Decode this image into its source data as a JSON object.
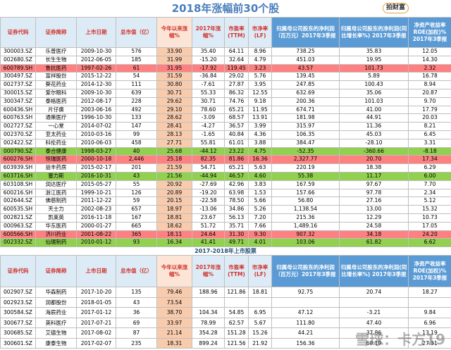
{
  "header": {
    "title": "2018年涨幅前30个股",
    "logo": "拍财富"
  },
  "columns": [
    "证券代码",
    "证券简称",
    "上市日期",
    "总市值（亿）",
    "今年以来涨幅%",
    "2017年涨幅%",
    "市盈率(TTM)",
    "市净率(LF)",
    "归属母公司股东的净利润（百万元）2017年3季报",
    "归属母公司股东的净利润(同比增长率%) 2017年3季报",
    "净资产收益率ROE(加权)% 2017年3季报"
  ],
  "rows": [
    {
      "cells": [
        "300003.SZ",
        "乐普医疗",
        "2009-10-30",
        "576",
        "33.90",
        "35.40",
        "64.11",
        "8.96",
        "738.25",
        "35.83",
        "12.05"
      ]
    },
    {
      "cells": [
        "002680.SZ",
        "长生生物",
        "2012-06-05",
        "185",
        "31.99",
        "-15.20",
        "32.64",
        "4.79",
        "451.03",
        "19.95",
        "14.30"
      ]
    },
    {
      "cells": [
        "600789.SH",
        "鲁抗医药",
        "1997-02-26",
        "61",
        "31.95",
        "-17.92",
        "119.45",
        "3.23",
        "43.57",
        "101.73",
        "2.32"
      ],
      "color": "#ff8080"
    },
    {
      "cells": [
        "300497.SZ",
        "富祥股份",
        "2015-12-22",
        "54",
        "31.59",
        "-36.84",
        "29.02",
        "5.76",
        "139.45",
        "5.89",
        "16.78"
      ]
    },
    {
      "cells": [
        "002737.SZ",
        "葵花药业",
        "2014-12-30",
        "111",
        "30.80",
        "-7.61",
        "27.87",
        "3.95",
        "247.85",
        "100.43",
        "8.94"
      ]
    },
    {
      "cells": [
        "300015.SZ",
        "爱尔眼科",
        "2009-10-30",
        "639",
        "30.71",
        "55.33",
        "86.32",
        "12.55",
        "632.69",
        "35.06",
        "20.87"
      ]
    },
    {
      "cells": [
        "300347.SZ",
        "泰格医药",
        "2012-08-17",
        "228",
        "29.62",
        "30.71",
        "74.76",
        "9.18",
        "200.36",
        "101.03",
        "9.70"
      ]
    },
    {
      "cells": [
        "600436.SH",
        "片仔癀",
        "2003-06-16",
        "492",
        "29.10",
        "78.60",
        "65.21",
        "11.95",
        "674.71",
        "41.00",
        "17.79"
      ]
    },
    {
      "cells": [
        "600763.SH",
        "通策医疗",
        "1996-10-30",
        "133",
        "28.62",
        "-3.09",
        "68.57",
        "13.91",
        "181.98",
        "44.91",
        "20.03"
      ]
    },
    {
      "cells": [
        "002727.SZ",
        "一心堂",
        "2014-07-02",
        "147",
        "28.41",
        "-4.27",
        "36.57",
        "3.99",
        "315.97",
        "11.36",
        "8.21"
      ]
    },
    {
      "cells": [
        "002370.SZ",
        "亚太药业",
        "2010-03-16",
        "99",
        "28.13",
        "-1.65",
        "40.84",
        "4.36",
        "106.35",
        "45.03",
        "6.45"
      ]
    },
    {
      "cells": [
        "002422.SZ",
        "科伦药业",
        "2010-06-03",
        "458",
        "27.71",
        "55.81",
        "61.01",
        "3.88",
        "384.47",
        "-28.10",
        "3.31"
      ]
    },
    {
      "cells": [
        "000790.SZ",
        "泰合健康",
        "1998-03-27",
        "40",
        "25.68",
        "-44.12",
        "23.22",
        "4.75",
        "-52.35",
        "-360.66",
        "-8.18"
      ],
      "color": "#92d050"
    },
    {
      "cells": [
        "600276.SH",
        "恒瑞医药",
        "2000-10-18",
        "2,446",
        "25.18",
        "82.35",
        "81.86",
        "16.36",
        "2,327.77",
        "20.70",
        "17.34"
      ],
      "color": "#ff8080"
    },
    {
      "cells": [
        "603939.SH",
        "益丰药房",
        "2015-02-17",
        "201",
        "21.59",
        "54.71",
        "65.21",
        "5.63",
        "220.19",
        "18.38",
        "6.29"
      ]
    },
    {
      "cells": [
        "603716.SH",
        "塞力斯",
        "2016-10-31",
        "43",
        "21.56",
        "-44.94",
        "46.57",
        "4.60",
        "55.38",
        "11.17",
        "6.00"
      ],
      "color": "#92d050"
    },
    {
      "cells": [
        "603108.SH",
        "润达医疗",
        "2015-05-27",
        "55",
        "20.92",
        "-27.69",
        "42.96",
        "3.83",
        "167.59",
        "97.67",
        "7.70"
      ]
    },
    {
      "cells": [
        "600216.SH",
        "浙江医药",
        "1999-10-21",
        "126",
        "20.89",
        "-19.20",
        "63.98",
        "1.53",
        "157.66",
        "97.78",
        "2.34"
      ]
    },
    {
      "cells": [
        "002644.SZ",
        "佛慈制药",
        "2011-12-22",
        "59",
        "20.15",
        "-22.58",
        "78.50",
        "5.66",
        "56.80",
        "27.16",
        "5.12"
      ]
    },
    {
      "cells": [
        "600535.SH",
        "天士力",
        "2002-08-23",
        "657",
        "18.97",
        "-13.06",
        "34.86",
        "5.26",
        "1,138.54",
        "13.00",
        "15.32"
      ]
    },
    {
      "cells": [
        "002821.SZ",
        "凯莱英",
        "2016-11-18",
        "167",
        "18.81",
        "23.67",
        "56.13",
        "7.20",
        "215.36",
        "12.29",
        "10.73"
      ]
    },
    {
      "cells": [
        "000963.SZ",
        "华东医药",
        "2000-01-27",
        "665",
        "18.62",
        "51.72",
        "35.71",
        "7.66",
        "1,489.16",
        "24.58",
        "17.05"
      ]
    },
    {
      "cells": [
        "600566.SH",
        "济川药业",
        "2001-08-22",
        "365",
        "18.11",
        "24.64",
        "31.30",
        "9.30",
        "907.32",
        "34.18",
        "24.20"
      ],
      "color": "#ff8080"
    },
    {
      "cells": [
        "002332.SZ",
        "仙琚制药",
        "2010-01-12",
        "93",
        "16.34",
        "41.41",
        "49.71",
        "4.01",
        "103.06",
        "61.82",
        "6.62"
      ],
      "color": "#92d050"
    }
  ],
  "section2": {
    "title": "2017-2018年上市股票",
    "rows": [
      {
        "cells": [
          "002907.SZ",
          "华森制药",
          "2017-10-20",
          "135",
          "79.46",
          "188.96",
          "121.86",
          "18.81",
          "92.75",
          "20.74",
          "18.27"
        ]
      },
      {
        "cells": [
          "002923.SZ",
          "润都股份",
          "2018-01-05",
          "43",
          "73.54",
          null,
          null,
          null,
          null,
          null,
          null
        ]
      },
      {
        "cells": [
          "300584.SZ",
          "海辰药业",
          "2017-01-12",
          "36",
          "38.70",
          "104.34",
          "54.85",
          "6.95",
          "47.12",
          "-3.21",
          "9.84"
        ]
      },
      {
        "cells": [
          "300677.SZ",
          "英科医疗",
          "2017-07-21",
          "69",
          "33.97",
          "78.99",
          "62.57",
          "5.67",
          "111.80",
          "47.40",
          "6.96"
        ]
      },
      {
        "cells": [
          "300685.SZ",
          "艾德生物",
          "2017-08-02",
          "87",
          "21.14",
          "354.28",
          "151.28",
          "15.26",
          "44.21",
          "37.86",
          "13.19"
        ]
      },
      {
        "cells": [
          "300601.SZ",
          "康泰生物",
          "2017-02-07",
          "235",
          "18.31",
          "899.24",
          "121.56",
          "21.92",
          "156.36",
          "68.19",
          "27.31"
        ]
      }
    ]
  },
  "watermark": "雪球：卡方19"
}
